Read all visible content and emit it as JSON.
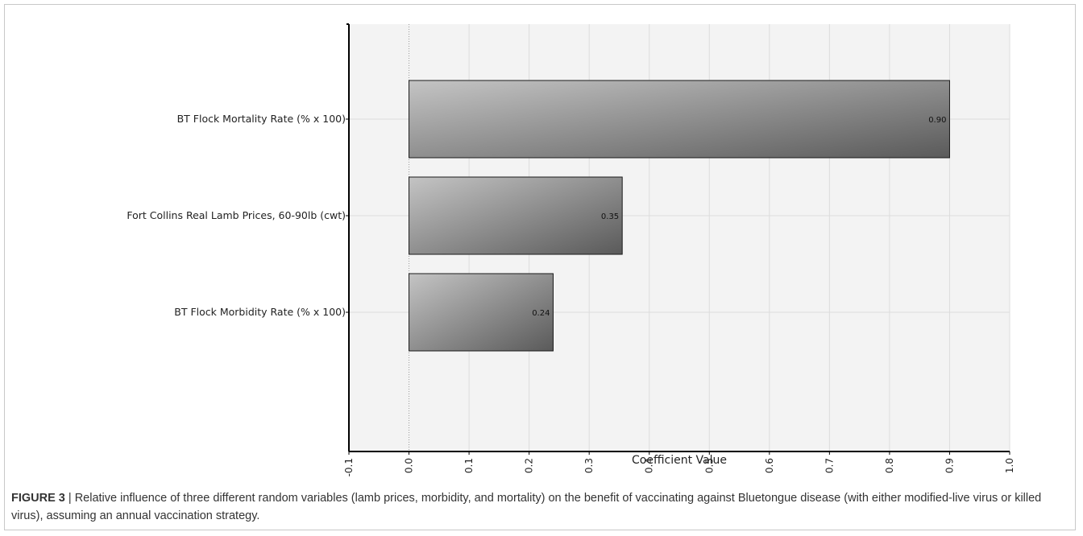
{
  "chart_data": {
    "type": "bar",
    "orientation": "horizontal",
    "categories": [
      "BT Flock Mortality Rate (% x 100)",
      "Fort Collins Real Lamb Prices, 60-90lb (cwt)",
      "BT Flock Morbidity Rate (% x 100)"
    ],
    "values": [
      0.9,
      0.355,
      0.24
    ],
    "data_labels": [
      "0.90",
      "0.35",
      "0.24"
    ],
    "xlabel": "Coefficient Value",
    "xlim": [
      -0.1,
      1.0
    ],
    "x_ticks": [
      "-0.1",
      "0.0",
      "0.1",
      "0.2",
      "0.3",
      "0.4",
      "0.5",
      "0.6",
      "0.7",
      "0.8",
      "0.9",
      "1.0"
    ],
    "grid": true,
    "bar_color": "#8a8a8a",
    "plot_background": "#f3f3f3"
  },
  "caption": {
    "figure_number": "FIGURE 3",
    "separator": " | ",
    "text": "Relative influence of three different random variables (lamb prices, morbidity, and mortality) on the benefit of vaccinating against Bluetongue disease (with either modified-live virus or killed virus), assuming an annual vaccination strategy."
  }
}
